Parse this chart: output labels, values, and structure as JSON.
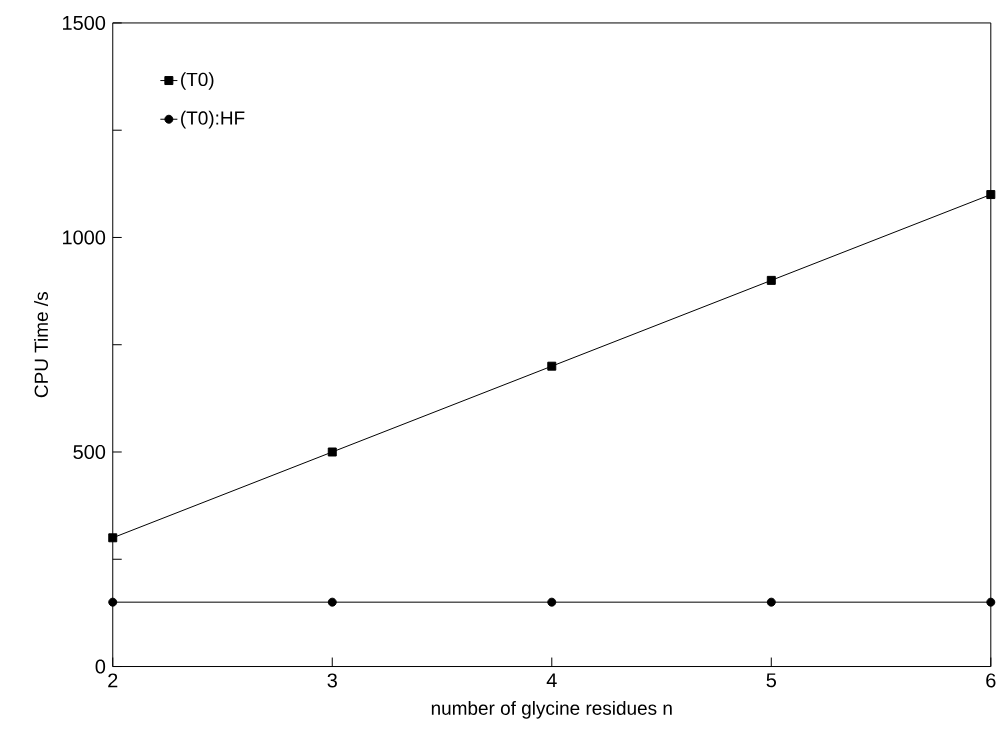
{
  "chart_data": {
    "type": "line",
    "xlabel": "number of glycine residues n",
    "ylabel": "CPU Time /s",
    "x": [
      2,
      3,
      4,
      5,
      6
    ],
    "series": [
      {
        "name": "(T0)",
        "color": "#000000",
        "marker": "square",
        "values": [
          300,
          500,
          700,
          900,
          1100
        ]
      },
      {
        "name": "(T0):HF",
        "color": "#000000",
        "marker": "circle",
        "values": [
          150,
          150,
          150,
          150,
          150
        ]
      }
    ],
    "xlim": [
      2,
      6
    ],
    "ylim": [
      0,
      1500
    ],
    "xticks": [
      2,
      3,
      4,
      5,
      6
    ],
    "yticks": [
      0,
      {
        "value": 250,
        "label": null
      },
      500,
      {
        "value": 750,
        "label": null
      },
      1000,
      {
        "value": 1250,
        "label": null
      },
      1500
    ],
    "grid": false,
    "legend": "top left",
    "line_style": "solid"
  }
}
